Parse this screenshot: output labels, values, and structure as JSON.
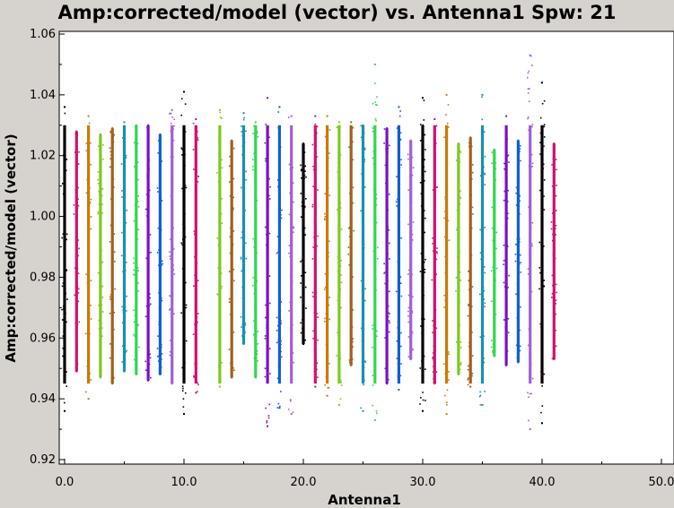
{
  "chart_data": {
    "type": "scatter",
    "title": "Amp:corrected/model (vector) vs. Antenna1 Spw: 21",
    "xlabel": "Antenna1",
    "ylabel": "Amp:corrected/model (vector)",
    "xlim": [
      0,
      50
    ],
    "ylim": [
      0.92,
      1.06
    ],
    "xticks": [
      "0.0",
      "10.0",
      "20.0",
      "30.0",
      "40.0",
      "50.0"
    ],
    "yticks": [
      "0.92",
      "0.94",
      "0.96",
      "0.98",
      "1.00",
      "1.02",
      "1.04",
      "1.06"
    ],
    "grid": false,
    "legend": "none",
    "series": [
      {
        "x": 0,
        "ymin": 0.936,
        "ymax": 1.036,
        "color": "#000000"
      },
      {
        "x": 1,
        "ymin": 0.949,
        "ymax": 1.028,
        "color": "#d0106e"
      },
      {
        "x": 2,
        "ymin": 0.94,
        "ymax": 1.033,
        "color": "#cc7a00"
      },
      {
        "x": 3,
        "ymin": 0.947,
        "ymax": 1.027,
        "color": "#7ec81e"
      },
      {
        "x": 4,
        "ymin": 0.945,
        "ymax": 1.029,
        "color": "#a0601a"
      },
      {
        "x": 5,
        "ymin": 0.949,
        "ymax": 1.031,
        "color": "#1890b0"
      },
      {
        "x": 6,
        "ymin": 0.948,
        "ymax": 1.03,
        "color": "#2ed84e"
      },
      {
        "x": 7,
        "ymin": 0.946,
        "ymax": 1.03,
        "color": "#7a10c8"
      },
      {
        "x": 8,
        "ymin": 0.948,
        "ymax": 1.027,
        "color": "#1060d0"
      },
      {
        "x": 9,
        "ymin": 0.945,
        "ymax": 1.035,
        "color": "#a060d8"
      },
      {
        "x": 10,
        "ymin": 0.935,
        "ymax": 1.041,
        "color": "#000000"
      },
      {
        "x": 11,
        "ymin": 0.942,
        "ymax": 1.032,
        "color": "#d0106e"
      },
      {
        "x": 13,
        "ymin": 0.944,
        "ymax": 1.035,
        "color": "#7ec81e"
      },
      {
        "x": 14,
        "ymin": 0.947,
        "ymax": 1.025,
        "color": "#a0601a"
      },
      {
        "x": 15,
        "ymin": 0.958,
        "ymax": 1.034,
        "color": "#1890b0"
      },
      {
        "x": 16,
        "ymin": 0.947,
        "ymax": 1.031,
        "color": "#2ed84e"
      },
      {
        "x": 17,
        "ymin": 0.931,
        "ymax": 1.039,
        "color": "#7a10c8"
      },
      {
        "x": 18,
        "ymin": 0.937,
        "ymax": 1.036,
        "color": "#1060d0"
      },
      {
        "x": 19,
        "ymin": 0.935,
        "ymax": 1.033,
        "color": "#a060d8"
      },
      {
        "x": 20,
        "ymin": 0.958,
        "ymax": 1.024,
        "color": "#000000"
      },
      {
        "x": 21,
        "ymin": 0.944,
        "ymax": 1.033,
        "color": "#d0106e"
      },
      {
        "x": 22,
        "ymin": 0.941,
        "ymax": 1.033,
        "color": "#cc7a00"
      },
      {
        "x": 23,
        "ymin": 0.938,
        "ymax": 1.031,
        "color": "#7ec81e"
      },
      {
        "x": 24,
        "ymin": 0.951,
        "ymax": 1.031,
        "color": "#a0601a"
      },
      {
        "x": 25,
        "ymin": 0.936,
        "ymax": 1.03,
        "color": "#1890b0"
      },
      {
        "x": 26,
        "ymin": 0.933,
        "ymax": 1.05,
        "color": "#2ed84e"
      },
      {
        "x": 27,
        "ymin": 0.945,
        "ymax": 1.029,
        "color": "#7a10c8"
      },
      {
        "x": 28,
        "ymin": 0.943,
        "ymax": 1.036,
        "color": "#1060d0"
      },
      {
        "x": 29,
        "ymin": 0.953,
        "ymax": 1.025,
        "color": "#a060d8"
      },
      {
        "x": 30,
        "ymin": 0.936,
        "ymax": 1.039,
        "color": "#000000"
      },
      {
        "x": 31,
        "ymin": 0.945,
        "ymax": 1.032,
        "color": "#d0106e"
      },
      {
        "x": 32,
        "ymin": 0.935,
        "ymax": 1.04,
        "color": "#cc7a00"
      },
      {
        "x": 33,
        "ymin": 0.948,
        "ymax": 1.024,
        "color": "#7ec81e"
      },
      {
        "x": 34,
        "ymin": 0.944,
        "ymax": 1.026,
        "color": "#a0601a"
      },
      {
        "x": 35,
        "ymin": 0.938,
        "ymax": 1.04,
        "color": "#1890b0"
      },
      {
        "x": 36,
        "ymin": 0.954,
        "ymax": 1.022,
        "color": "#2ed84e"
      },
      {
        "x": 37,
        "ymin": 0.951,
        "ymax": 1.033,
        "color": "#7a10c8"
      },
      {
        "x": 38,
        "ymin": 0.952,
        "ymax": 1.025,
        "color": "#1060d0"
      },
      {
        "x": 39,
        "ymin": 0.93,
        "ymax": 1.053,
        "color": "#a060d8"
      },
      {
        "x": 40,
        "ymin": 0.932,
        "ymax": 1.044,
        "color": "#000000"
      },
      {
        "x": 41,
        "ymin": 0.953,
        "ymax": 1.024,
        "color": "#d0106e"
      }
    ]
  }
}
